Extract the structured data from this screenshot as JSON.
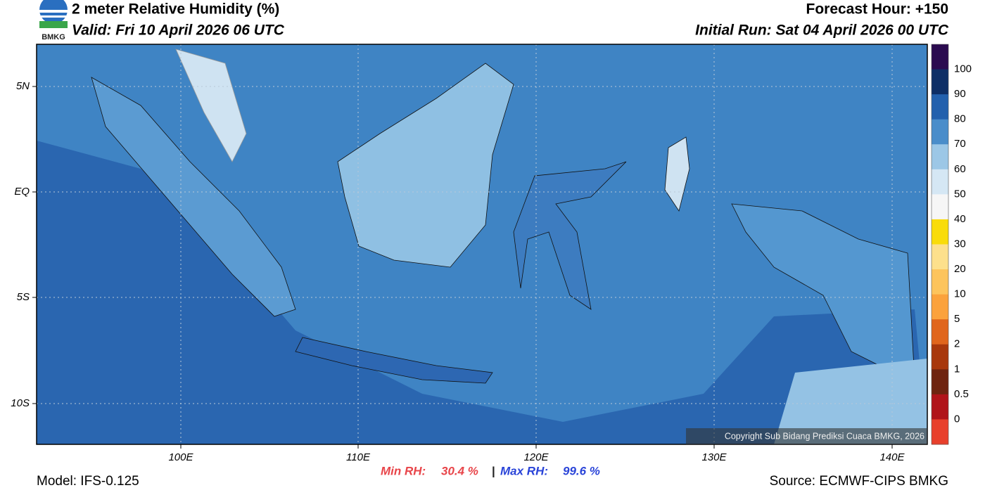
{
  "header": {
    "title": "2 meter Relative Humidity (%)",
    "valid": "Valid: Fri 10 April 2026 06 UTC",
    "forecast_hour": "Forecast Hour: +150",
    "initial_run": "Initial Run: Sat 04 April 2026 00 UTC",
    "logo_text": "BMKG"
  },
  "map": {
    "lat_labels": [
      "5N",
      "EQ",
      "5S",
      "10S"
    ],
    "lon_labels": [
      "100E",
      "110E",
      "120E",
      "130E",
      "140E"
    ],
    "copyright": "Copyright Sub Bidang Prediksi Cuaca BMKG, 2026"
  },
  "colorbar": {
    "labels": [
      100,
      90,
      80,
      70,
      60,
      50,
      40,
      30,
      20,
      10,
      5,
      2,
      1,
      0.5,
      0
    ],
    "colors": [
      "#2b0b50",
      "#0e2f66",
      "#2361ad",
      "#4a8dca",
      "#9cc7e6",
      "#d5e7f4",
      "#f6f6f6",
      "#f9dc0a",
      "#fde08c",
      "#fdc45c",
      "#fba23c",
      "#e0661c",
      "#a8380c",
      "#6e2410",
      "#b0141a",
      "#e8402c"
    ]
  },
  "footer": {
    "model": "Model: IFS-0.125",
    "min_rh_label": "Min RH:",
    "min_rh": "30.4 %",
    "separator": "|",
    "max_rh_label": "Max RH:",
    "max_rh": "99.6 %",
    "source": "Source: ECMWF-CIPS BMKG"
  }
}
